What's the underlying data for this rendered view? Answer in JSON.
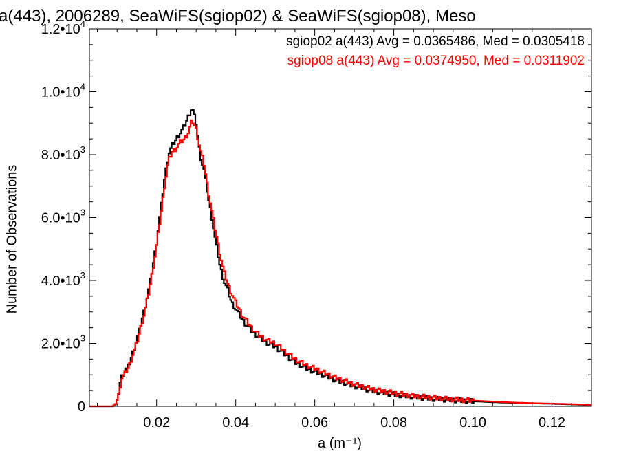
{
  "chart_data": {
    "type": "line",
    "title": "a(443), 2006289, SeaWiFS(sgiop02) & SeaWiFS(sgiop08), Meso",
    "xlabel": "a (m⁻¹)",
    "ylabel": "Number of Observations",
    "xlim": [
      0.003,
      0.13
    ],
    "ylim": [
      0,
      12000
    ],
    "x_ticks": [
      {
        "value": 0.02,
        "label": "0.02"
      },
      {
        "value": 0.04,
        "label": "0.04"
      },
      {
        "value": 0.06,
        "label": "0.06"
      },
      {
        "value": 0.08,
        "label": "0.08"
      },
      {
        "value": 0.1,
        "label": "0.10"
      },
      {
        "value": 0.12,
        "label": "0.12"
      }
    ],
    "y_ticks": [
      {
        "value": 0,
        "mant": "0",
        "exp": ""
      },
      {
        "value": 2000,
        "mant": "2.0•10",
        "exp": "3"
      },
      {
        "value": 4000,
        "mant": "4.0•10",
        "exp": "3"
      },
      {
        "value": 6000,
        "mant": "6.0•10",
        "exp": "3"
      },
      {
        "value": 8000,
        "mant": "8.0•10",
        "exp": "3"
      },
      {
        "value": 10000,
        "mant": "1.0•10",
        "exp": "4"
      },
      {
        "value": 12000,
        "mant": "1.2•10",
        "exp": "4"
      }
    ],
    "legend_position": "top-right",
    "series": [
      {
        "legend": "sgiop02 a(443) Avg = 0.0365486, Med = 0.0305418",
        "color": "#000000",
        "points": [
          [
            0.003,
            0
          ],
          [
            0.009,
            0
          ],
          [
            0.0098,
            100
          ],
          [
            0.0105,
            500
          ],
          [
            0.011,
            900
          ],
          [
            0.012,
            1100
          ],
          [
            0.013,
            1300
          ],
          [
            0.014,
            1700
          ],
          [
            0.015,
            2100
          ],
          [
            0.016,
            2600
          ],
          [
            0.017,
            3100
          ],
          [
            0.018,
            3700
          ],
          [
            0.019,
            4400
          ],
          [
            0.02,
            5200
          ],
          [
            0.021,
            6200
          ],
          [
            0.022,
            7200
          ],
          [
            0.023,
            8000
          ],
          [
            0.024,
            8300
          ],
          [
            0.025,
            8500
          ],
          [
            0.026,
            8700
          ],
          [
            0.027,
            8900
          ],
          [
            0.028,
            9200
          ],
          [
            0.029,
            9500
          ],
          [
            0.03,
            9000
          ],
          [
            0.031,
            8000
          ],
          [
            0.032,
            7500
          ],
          [
            0.033,
            6700
          ],
          [
            0.034,
            6000
          ],
          [
            0.035,
            5200
          ],
          [
            0.036,
            4500
          ],
          [
            0.037,
            4000
          ],
          [
            0.038,
            3700
          ],
          [
            0.039,
            3300
          ],
          [
            0.04,
            3100
          ],
          [
            0.042,
            2700
          ],
          [
            0.044,
            2400
          ],
          [
            0.046,
            2200
          ],
          [
            0.048,
            2000
          ],
          [
            0.05,
            1900
          ],
          [
            0.052,
            1700
          ],
          [
            0.055,
            1400
          ],
          [
            0.058,
            1200
          ],
          [
            0.06,
            1100
          ],
          [
            0.065,
            850
          ],
          [
            0.07,
            650
          ],
          [
            0.075,
            480
          ],
          [
            0.08,
            380
          ],
          [
            0.085,
            300
          ],
          [
            0.09,
            240
          ],
          [
            0.095,
            200
          ],
          [
            0.1,
            160
          ],
          [
            0.105,
            130
          ],
          [
            0.11,
            110
          ],
          [
            0.115,
            95
          ],
          [
            0.12,
            80
          ],
          [
            0.125,
            60
          ],
          [
            0.13,
            40
          ]
        ]
      },
      {
        "legend": "sgiop08 a(443) Avg = 0.0374950, Med = 0.0311902",
        "color": "#ff0000",
        "points": [
          [
            0.003,
            0
          ],
          [
            0.009,
            0
          ],
          [
            0.0098,
            100
          ],
          [
            0.0105,
            400
          ],
          [
            0.011,
            850
          ],
          [
            0.012,
            1050
          ],
          [
            0.013,
            1250
          ],
          [
            0.014,
            1650
          ],
          [
            0.015,
            2000
          ],
          [
            0.016,
            2500
          ],
          [
            0.017,
            3000
          ],
          [
            0.018,
            3600
          ],
          [
            0.019,
            4300
          ],
          [
            0.02,
            5100
          ],
          [
            0.021,
            6000
          ],
          [
            0.022,
            7000
          ],
          [
            0.023,
            7800
          ],
          [
            0.024,
            8100
          ],
          [
            0.025,
            8200
          ],
          [
            0.026,
            8400
          ],
          [
            0.027,
            8500
          ],
          [
            0.028,
            8700
          ],
          [
            0.029,
            9100
          ],
          [
            0.03,
            8800
          ],
          [
            0.031,
            8200
          ],
          [
            0.032,
            7700
          ],
          [
            0.033,
            6900
          ],
          [
            0.034,
            6200
          ],
          [
            0.035,
            5500
          ],
          [
            0.036,
            4900
          ],
          [
            0.037,
            4300
          ],
          [
            0.038,
            3900
          ],
          [
            0.039,
            3600
          ],
          [
            0.04,
            3300
          ],
          [
            0.042,
            2850
          ],
          [
            0.044,
            2500
          ],
          [
            0.046,
            2250
          ],
          [
            0.048,
            2100
          ],
          [
            0.05,
            2000
          ],
          [
            0.052,
            1800
          ],
          [
            0.055,
            1500
          ],
          [
            0.058,
            1300
          ],
          [
            0.06,
            1200
          ],
          [
            0.065,
            920
          ],
          [
            0.07,
            700
          ],
          [
            0.075,
            530
          ],
          [
            0.08,
            420
          ],
          [
            0.085,
            330
          ],
          [
            0.09,
            270
          ],
          [
            0.095,
            220
          ],
          [
            0.1,
            180
          ],
          [
            0.105,
            150
          ],
          [
            0.11,
            120
          ],
          [
            0.115,
            100
          ],
          [
            0.12,
            85
          ],
          [
            0.125,
            70
          ],
          [
            0.13,
            50
          ]
        ]
      }
    ]
  }
}
